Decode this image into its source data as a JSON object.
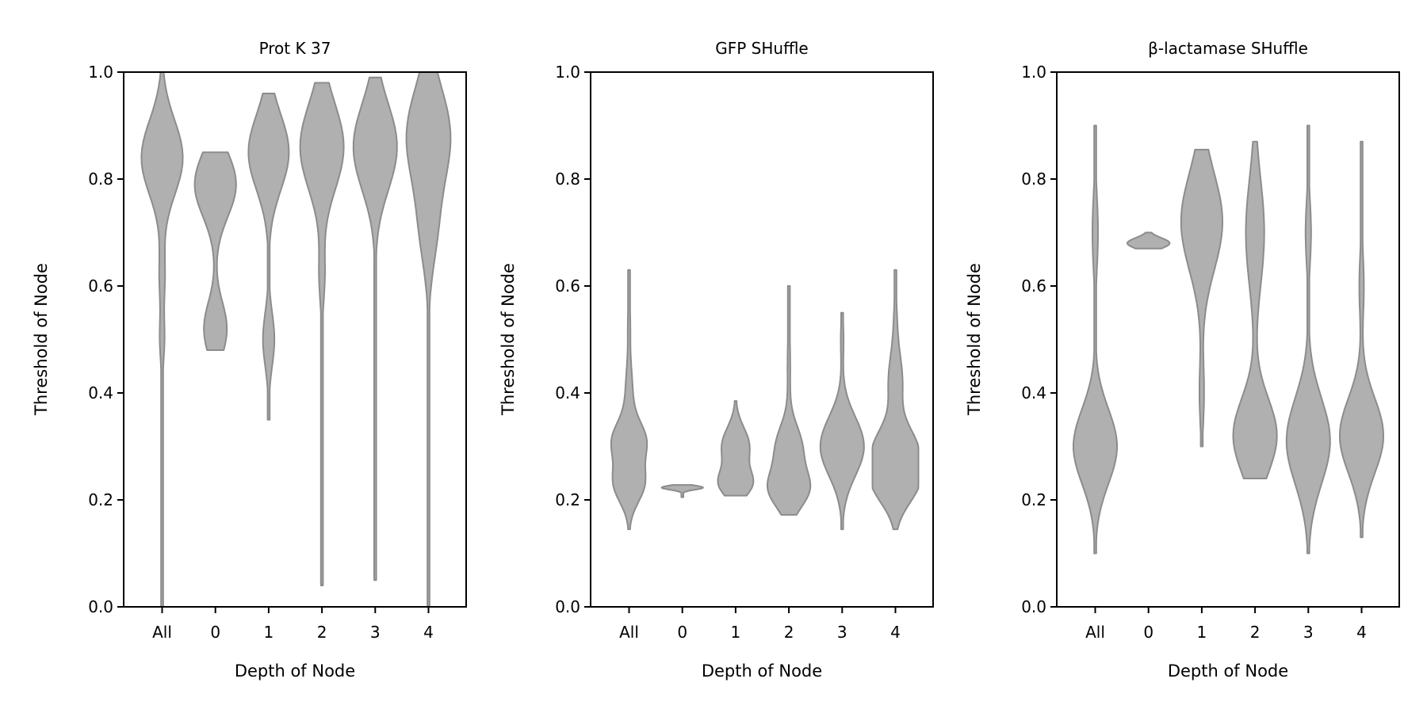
{
  "style": {
    "violin_fill": "#b0b0b0",
    "violin_stroke": "#8c8c8c",
    "grid": false,
    "legend": "none"
  },
  "chart_data": [
    {
      "type": "violin",
      "title": "Prot K 37",
      "xlabel": "Depth of Node",
      "ylabel": "Threshold of Node",
      "categories": [
        "All",
        "0",
        "1",
        "2",
        "3",
        "4"
      ],
      "ylim": [
        0,
        1
      ],
      "yticks": [
        "0.0",
        "0.2",
        "0.4",
        "0.6",
        "0.8",
        "1.0"
      ],
      "violins": [
        {
          "category": "All",
          "min": 0.0,
          "max": 1.0,
          "peaks": [
            {
              "y": 0.84,
              "w": 0.9,
              "s": 0.07
            },
            {
              "y": 0.62,
              "w": 0.12,
              "s": 0.05
            },
            {
              "y": 0.5,
              "w": 0.1,
              "s": 0.04
            }
          ]
        },
        {
          "category": "0",
          "min": 0.48,
          "max": 0.85,
          "peaks": [
            {
              "y": 0.79,
              "w": 0.9,
              "s": 0.06
            },
            {
              "y": 0.52,
              "w": 0.5,
              "s": 0.05
            }
          ]
        },
        {
          "category": "1",
          "min": 0.35,
          "max": 0.96,
          "peaks": [
            {
              "y": 0.85,
              "w": 0.88,
              "s": 0.07
            },
            {
              "y": 0.5,
              "w": 0.25,
              "s": 0.05
            }
          ]
        },
        {
          "category": "2",
          "min": 0.04,
          "max": 0.98,
          "peaks": [
            {
              "y": 0.86,
              "w": 0.95,
              "s": 0.08
            },
            {
              "y": 0.62,
              "w": 0.12,
              "s": 0.05
            }
          ]
        },
        {
          "category": "3",
          "min": 0.05,
          "max": 0.99,
          "peaks": [
            {
              "y": 0.86,
              "w": 0.95,
              "s": 0.08
            }
          ]
        },
        {
          "category": "4",
          "min": 0.0,
          "max": 1.0,
          "peaks": [
            {
              "y": 0.88,
              "w": 0.95,
              "s": 0.09
            },
            {
              "y": 0.7,
              "w": 0.3,
              "s": 0.07
            }
          ]
        }
      ]
    },
    {
      "type": "violin",
      "title": "GFP SHuffle",
      "xlabel": "Depth of Node",
      "ylabel": "Threshold of Node",
      "categories": [
        "All",
        "0",
        "1",
        "2",
        "3",
        "4"
      ],
      "ylim": [
        0,
        1
      ],
      "yticks": [
        "0.0",
        "0.2",
        "0.4",
        "0.6",
        "0.8",
        "1.0"
      ],
      "violins": [
        {
          "category": "All",
          "min": 0.145,
          "max": 0.63,
          "peaks": [
            {
              "y": 0.31,
              "w": 0.7,
              "s": 0.035
            },
            {
              "y": 0.23,
              "w": 0.65,
              "s": 0.035
            },
            {
              "y": 0.4,
              "w": 0.15,
              "s": 0.05
            },
            {
              "y": 0.53,
              "w": 0.05,
              "s": 0.04
            }
          ]
        },
        {
          "category": "0",
          "min": 0.205,
          "max": 0.228,
          "peaks": [
            {
              "y": 0.223,
              "w": 0.9,
              "s": 0.004
            }
          ]
        },
        {
          "category": "1",
          "min": 0.208,
          "max": 0.385,
          "peaks": [
            {
              "y": 0.3,
              "w": 0.6,
              "s": 0.035
            },
            {
              "y": 0.23,
              "w": 0.68,
              "s": 0.025
            }
          ]
        },
        {
          "category": "2",
          "min": 0.172,
          "max": 0.6,
          "peaks": [
            {
              "y": 0.22,
              "w": 0.85,
              "s": 0.035
            },
            {
              "y": 0.3,
              "w": 0.55,
              "s": 0.04
            },
            {
              "y": 0.45,
              "w": 0.06,
              "s": 0.06
            }
          ]
        },
        {
          "category": "3",
          "min": 0.145,
          "max": 0.55,
          "peaks": [
            {
              "y": 0.3,
              "w": 0.95,
              "s": 0.055
            },
            {
              "y": 0.5,
              "w": 0.06,
              "s": 0.04
            }
          ]
        },
        {
          "category": "4",
          "min": 0.145,
          "max": 0.63,
          "peaks": [
            {
              "y": 0.23,
              "w": 0.9,
              "s": 0.04
            },
            {
              "y": 0.3,
              "w": 0.8,
              "s": 0.04
            },
            {
              "y": 0.42,
              "w": 0.3,
              "s": 0.05
            },
            {
              "y": 0.53,
              "w": 0.06,
              "s": 0.05
            }
          ]
        }
      ]
    },
    {
      "type": "violin",
      "title": "β-lactamase SHuffle",
      "xlabel": "Depth of Node",
      "ylabel": "Threshold of Node",
      "categories": [
        "All",
        "0",
        "1",
        "2",
        "3",
        "4"
      ],
      "ylim": [
        0,
        1
      ],
      "yticks": [
        "0.0",
        "0.2",
        "0.4",
        "0.6",
        "0.8",
        "1.0"
      ],
      "violins": [
        {
          "category": "All",
          "min": 0.1,
          "max": 0.9,
          "peaks": [
            {
              "y": 0.3,
              "w": 0.95,
              "s": 0.07
            },
            {
              "y": 0.7,
              "w": 0.12,
              "s": 0.07
            }
          ]
        },
        {
          "category": "0",
          "min": 0.67,
          "max": 0.7,
          "peaks": [
            {
              "y": 0.68,
              "w": 0.92,
              "s": 0.01
            }
          ]
        },
        {
          "category": "1",
          "min": 0.3,
          "max": 0.855,
          "peaks": [
            {
              "y": 0.72,
              "w": 0.9,
              "s": 0.09
            },
            {
              "y": 0.4,
              "w": 0.1,
              "s": 0.06
            }
          ]
        },
        {
          "category": "2",
          "min": 0.24,
          "max": 0.87,
          "peaks": [
            {
              "y": 0.32,
              "w": 0.95,
              "s": 0.07
            },
            {
              "y": 0.7,
              "w": 0.4,
              "s": 0.1
            }
          ]
        },
        {
          "category": "3",
          "min": 0.1,
          "max": 0.9,
          "peaks": [
            {
              "y": 0.31,
              "w": 0.95,
              "s": 0.08
            },
            {
              "y": 0.7,
              "w": 0.12,
              "s": 0.06
            }
          ]
        },
        {
          "category": "4",
          "min": 0.13,
          "max": 0.87,
          "peaks": [
            {
              "y": 0.32,
              "w": 0.95,
              "s": 0.07
            },
            {
              "y": 0.6,
              "w": 0.1,
              "s": 0.06
            }
          ]
        }
      ]
    }
  ]
}
